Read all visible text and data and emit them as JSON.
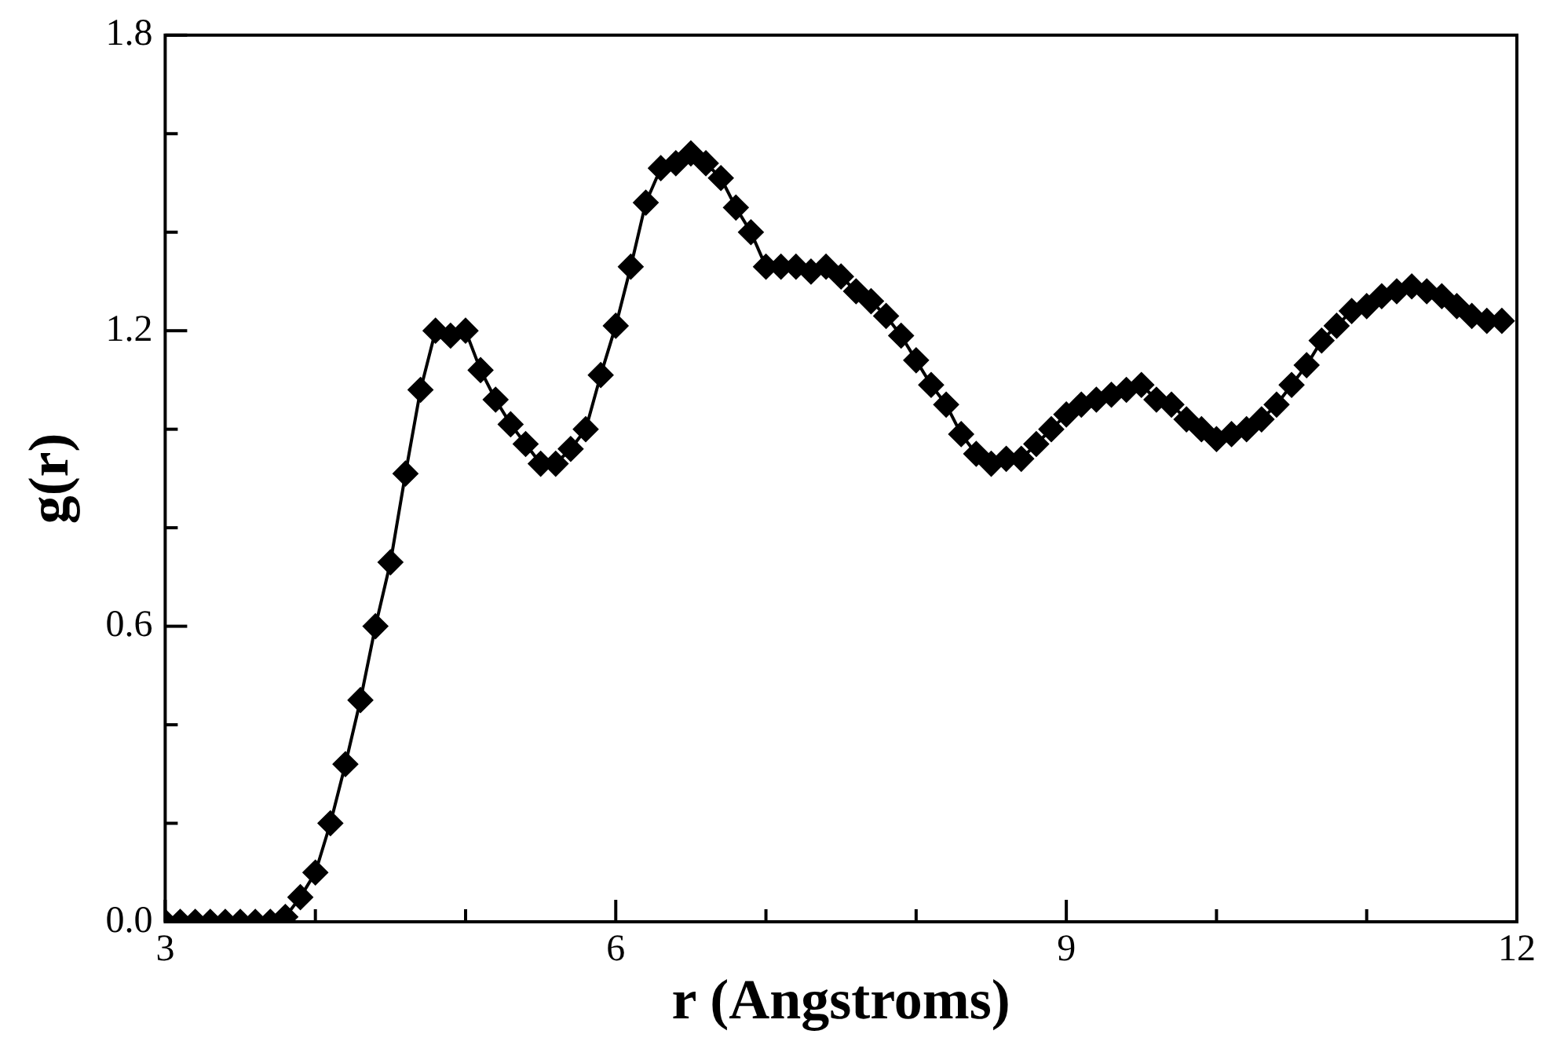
{
  "chart_data": {
    "type": "line",
    "xlabel": "r (Angstroms)",
    "ylabel": "g(r)",
    "marker": "diamond",
    "line_style": "solid",
    "grid": false,
    "legend": false,
    "x": [
      3.0,
      3.1,
      3.2,
      3.3,
      3.4,
      3.5,
      3.6,
      3.7,
      3.8,
      3.9,
      4.0,
      4.1,
      4.2,
      4.3,
      4.4,
      4.5,
      4.6,
      4.7,
      4.8,
      4.9,
      5.0,
      5.1,
      5.2,
      5.3,
      5.4,
      5.5,
      5.6,
      5.7,
      5.8,
      5.9,
      6.0,
      6.1,
      6.2,
      6.3,
      6.4,
      6.5,
      6.6,
      6.7,
      6.8,
      6.9,
      7.0,
      7.1,
      7.2,
      7.3,
      7.4,
      7.5,
      7.6,
      7.7,
      7.8,
      7.9,
      8.0,
      8.1,
      8.2,
      8.3,
      8.4,
      8.5,
      8.6,
      8.7,
      8.8,
      8.9,
      9.0,
      9.1,
      9.2,
      9.3,
      9.4,
      9.5,
      9.6,
      9.7,
      9.8,
      9.9,
      10.0,
      10.1,
      10.2,
      10.3,
      10.4,
      10.5,
      10.6,
      10.7,
      10.8,
      10.9,
      11.0,
      11.1,
      11.2,
      11.3,
      11.4,
      11.5,
      11.6,
      11.7,
      11.8,
      11.9
    ],
    "series": [
      {
        "color": "#000000",
        "values": [
          0,
          0,
          0,
          0,
          0,
          0,
          0,
          0,
          0.01,
          0.05,
          0.1,
          0.2,
          0.32,
          0.45,
          0.6,
          0.73,
          0.91,
          1.08,
          1.2,
          1.19,
          1.2,
          1.12,
          1.06,
          1.01,
          0.97,
          0.93,
          0.93,
          0.96,
          1.0,
          1.11,
          1.21,
          1.33,
          1.46,
          1.53,
          1.54,
          1.56,
          1.54,
          1.51,
          1.45,
          1.4,
          1.33,
          1.33,
          1.33,
          1.32,
          1.33,
          1.31,
          1.28,
          1.26,
          1.23,
          1.19,
          1.14,
          1.09,
          1.05,
          0.99,
          0.95,
          0.93,
          0.94,
          0.94,
          0.97,
          1.0,
          1.03,
          1.05,
          1.06,
          1.07,
          1.08,
          1.09,
          1.06,
          1.05,
          1.02,
          1.0,
          0.98,
          0.99,
          1.0,
          1.02,
          1.05,
          1.09,
          1.13,
          1.18,
          1.21,
          1.24,
          1.25,
          1.27,
          1.28,
          1.29,
          1.28,
          1.27,
          1.25,
          1.23,
          1.22,
          1.22
        ]
      }
    ],
    "xlim": [
      3,
      12
    ],
    "xticks": [
      3,
      {
        "value": 4,
        "label": null
      },
      {
        "value": 5,
        "label": null
      },
      6,
      {
        "value": 7,
        "label": null
      },
      {
        "value": 8,
        "label": null
      },
      9,
      {
        "value": 10,
        "label": null
      },
      {
        "value": 11,
        "label": null
      },
      12
    ],
    "ylim": [
      0,
      1.8
    ],
    "yticks": [
      "0.0",
      {
        "value": 0.2,
        "label": null
      },
      {
        "value": 0.4,
        "label": null
      },
      {
        "value": 0.6,
        "label": "0.6"
      },
      {
        "value": 0.8,
        "label": null
      },
      {
        "value": 1.0,
        "label": null
      },
      {
        "value": 1.2,
        "label": "1.2"
      },
      {
        "value": 1.4,
        "label": null
      },
      {
        "value": 1.6,
        "label": null
      },
      {
        "value": 1.8,
        "label": "1.8"
      }
    ]
  }
}
